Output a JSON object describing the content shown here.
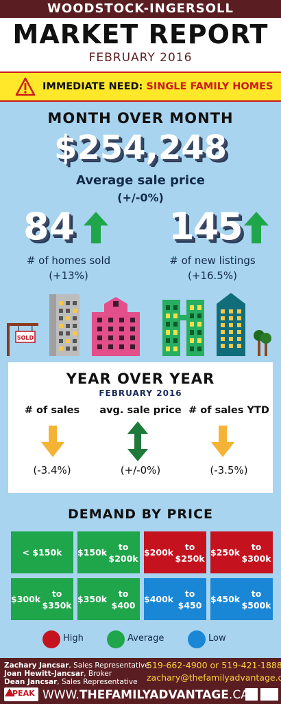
{
  "header": {
    "region": "WOODSTOCK-INGERSOLL",
    "title": "MARKET REPORT",
    "date": "FEBRUARY 2016"
  },
  "alert": {
    "prefix": "IMMEDIATE NEED:",
    "highlight": "SINGLE FAMILY HOMES",
    "icon": "warning-triangle-icon"
  },
  "month_over_month": {
    "heading": "MONTH OVER MONTH",
    "avg_price": "$254,248",
    "avg_price_label": "Average sale price",
    "avg_price_change": "(+/-0%)",
    "homes_sold": "84",
    "homes_sold_label": "# of homes sold",
    "homes_sold_change": "(+13%)",
    "new_listings": "145",
    "new_listings_label": "# of new listings",
    "new_listings_change": "(+16.5%)",
    "sign_text": "SOLD"
  },
  "year_over_year": {
    "heading": "YEAR OVER YEAR",
    "date": "FEBRUARY 2016",
    "items": [
      {
        "label": "# of sales",
        "change": "(-3.4%)",
        "direction": "down",
        "color": "#f5b335"
      },
      {
        "label": "avg. sale price",
        "change": "(+/-0%)",
        "direction": "both",
        "color": "#1e7a3a"
      },
      {
        "label": "# of sales YTD",
        "change": "(-3.5%)",
        "direction": "down",
        "color": "#f5b335"
      }
    ]
  },
  "demand": {
    "heading": "DEMAND BY PRICE",
    "tiles": [
      {
        "l1": "< $150k",
        "l2": "",
        "level": "avg"
      },
      {
        "l1": "$150k",
        "l2": "to $200k",
        "level": "avg"
      },
      {
        "l1": "$200k",
        "l2": "to $250k",
        "level": "high"
      },
      {
        "l1": "$250k",
        "l2": "to $300k",
        "level": "high"
      },
      {
        "l1": "$300k",
        "l2": "to $350k",
        "level": "avg"
      },
      {
        "l1": "$350k",
        "l2": "to $400",
        "level": "avg"
      },
      {
        "l1": "$400k",
        "l2": "to $450",
        "level": "low"
      },
      {
        "l1": "$450k",
        "l2": "to $500k",
        "level": "low"
      }
    ],
    "legend": {
      "high": "High",
      "average": "Average",
      "low": "Low"
    },
    "colors": {
      "high": "#c4121f",
      "avg": "#1fa54a",
      "low": "#1a86d6"
    }
  },
  "footer": {
    "agents": [
      {
        "name": "Zachary Jancsar",
        "role": ", Sales Representative"
      },
      {
        "name": "Joan Hewitt-Jancsar",
        "role": ", Broker"
      },
      {
        "name": "Dean Jancsar",
        "role": ", Sales Representative"
      }
    ],
    "phone": "519-662-4900 or 519-421-1888",
    "email": "zachary@thefamilyadvantage.ca",
    "website_prefix": "WWW.",
    "website_main": "THEFAMILYADVANTAGE",
    "website_suffix": ".CA",
    "brand": "PEAK"
  }
}
